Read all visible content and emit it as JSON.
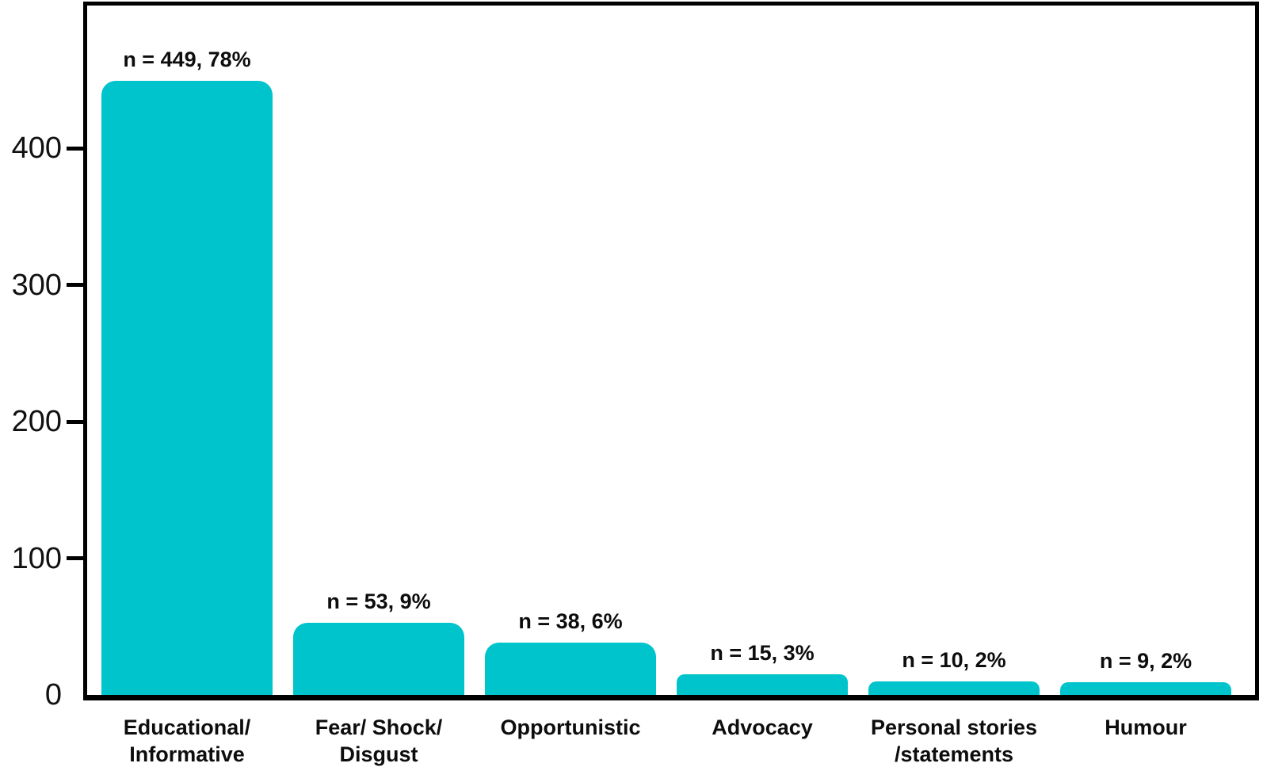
{
  "chart_data": {
    "type": "bar",
    "title": "",
    "xlabel": "",
    "ylabel": "",
    "categories": [
      "Educational/\nInformative",
      "Fear/ Shock/\nDisgust",
      "Opportunistic",
      "Advocacy",
      "Personal stories\n/statements",
      "Humour"
    ],
    "values": [
      449,
      53,
      38,
      15,
      10,
      9
    ],
    "percentages": [
      78,
      9,
      6,
      3,
      2,
      2
    ],
    "bar_labels": [
      "n = 449, 78%",
      "n = 53, 9%",
      "n = 38, 6%",
      "n = 15, 3%",
      "n = 10, 2%",
      "n = 9, 2%"
    ],
    "y_ticks": [
      0,
      100,
      200,
      300,
      400
    ],
    "ylim": [
      0,
      505
    ],
    "grid": false,
    "legend_position": "none",
    "colors": {
      "bar": "#00C4CC",
      "axis": "#000000",
      "text": "#0d0d0d",
      "background": "#ffffff"
    }
  }
}
